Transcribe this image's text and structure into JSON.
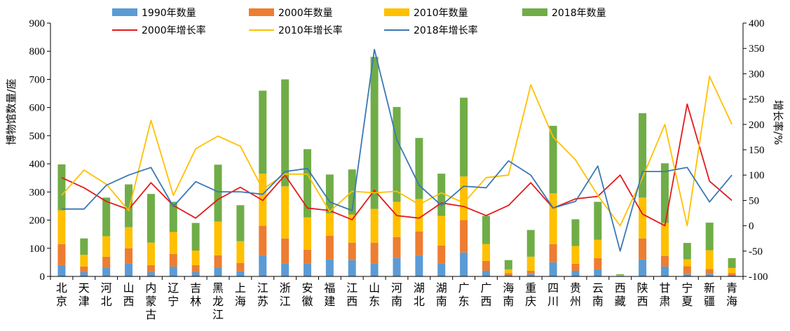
{
  "chart_data": {
    "type": "bar",
    "stacked": true,
    "title": "",
    "ylabel": "博物馆数量/座",
    "y2label": "增长率/%",
    "ylim": [
      0,
      900
    ],
    "y2lim": [
      -100,
      400
    ],
    "yticks": [
      "0",
      "100",
      "200",
      "300",
      "400",
      "500",
      "600",
      "700",
      "800",
      "900"
    ],
    "y2ticks": [
      "-100",
      "-50",
      "0",
      "50",
      "100",
      "150",
      "200",
      "250",
      "300",
      "350",
      "400"
    ],
    "grid": false,
    "legend_position": "top",
    "categories": [
      "北京",
      "天津",
      "河北",
      "山西",
      "内蒙古",
      "辽宁",
      "吉林",
      "黑龙江",
      "上海",
      "江苏",
      "浙江",
      "安徽",
      "福建",
      "江西",
      "山东",
      "河南",
      "湖北",
      "湖南",
      "广东",
      "广西",
      "海南",
      "重庆",
      "四川",
      "贵州",
      "云南",
      "西藏",
      "陕西",
      "甘肃",
      "宁夏",
      "新疆",
      "青海"
    ],
    "series": [
      {
        "name": "1990年数量",
        "kind": "bar",
        "color": "#5b9bd5",
        "values": [
          40,
          15,
          30,
          45,
          15,
          35,
          15,
          30,
          18,
          75,
          45,
          45,
          60,
          58,
          45,
          65,
          75,
          45,
          85,
          20,
          5,
          8,
          50,
          20,
          25,
          2,
          60,
          35,
          8,
          8,
          5
        ]
      },
      {
        "name": "2000年数量",
        "kind": "bar",
        "color": "#ed7d31",
        "values": [
          75,
          20,
          40,
          55,
          25,
          45,
          25,
          45,
          30,
          105,
          90,
          50,
          85,
          62,
          75,
          75,
          85,
          65,
          115,
          35,
          7,
          12,
          65,
          25,
          40,
          1,
          75,
          38,
          28,
          18,
          7
        ]
      },
      {
        "name": "2010年数量",
        "kind": "bar",
        "color": "#ffc000",
        "values": [
          120,
          42,
          73,
          75,
          80,
          78,
          52,
          120,
          77,
          185,
          185,
          115,
          80,
          100,
          120,
          125,
          115,
          105,
          155,
          60,
          13,
          50,
          180,
          63,
          65,
          2,
          145,
          117,
          25,
          67,
          18
        ]
      },
      {
        "name": "2018年数量",
        "kind": "bar",
        "color": "#70ad47",
        "values": [
          163,
          58,
          137,
          152,
          173,
          107,
          98,
          202,
          128,
          295,
          380,
          242,
          137,
          160,
          540,
          337,
          217,
          150,
          280,
          100,
          33,
          95,
          240,
          95,
          135,
          3,
          300,
          212,
          58,
          98,
          35
        ]
      },
      {
        "name": "2000年增长率",
        "kind": "line",
        "axis": "right",
        "color": "#e41a1c",
        "values": [
          95,
          75,
          48,
          32,
          85,
          40,
          15,
          52,
          76,
          50,
          100,
          35,
          30,
          12,
          70,
          20,
          15,
          45,
          38,
          20,
          40,
          85,
          35,
          53,
          58,
          100,
          23,
          0,
          240,
          88,
          50
        ]
      },
      {
        "name": "2010年增长率",
        "kind": "line",
        "axis": "right",
        "color": "#ffc000",
        "values": [
          60,
          110,
          82,
          30,
          208,
          60,
          152,
          177,
          157,
          72,
          102,
          102,
          28,
          68,
          65,
          68,
          42,
          65,
          45,
          95,
          100,
          278,
          175,
          130,
          60,
          0,
          95,
          200,
          0,
          295,
          200
        ]
      },
      {
        "name": "2018年增长率",
        "kind": "line",
        "axis": "right",
        "color": "#3a78b5",
        "values": [
          33,
          33,
          80,
          100,
          115,
          38,
          87,
          67,
          67,
          62,
          107,
          113,
          47,
          30,
          348,
          170,
          80,
          40,
          78,
          75,
          128,
          100,
          35,
          48,
          118,
          -50,
          107,
          107,
          115,
          47,
          100
        ]
      }
    ]
  }
}
